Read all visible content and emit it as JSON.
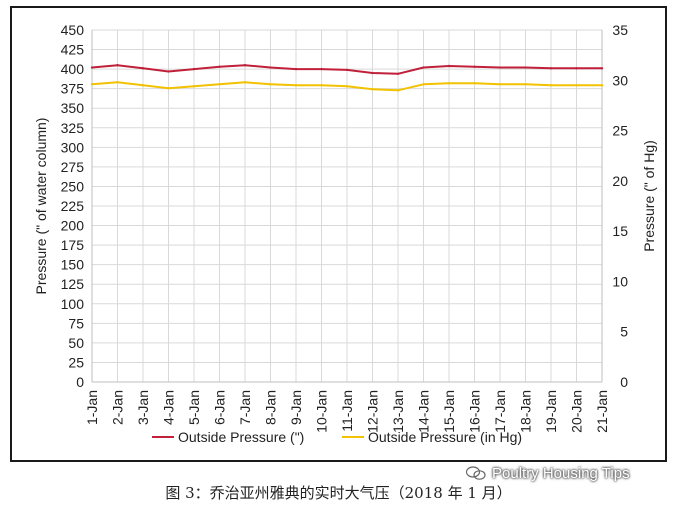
{
  "chart_data": {
    "type": "line",
    "x": [
      "1-Jan",
      "2-Jan",
      "3-Jan",
      "4-Jan",
      "5-Jan",
      "6-Jan",
      "7-Jan",
      "8-Jan",
      "9-Jan",
      "10-Jan",
      "11-Jan",
      "12-Jan",
      "13-Jan",
      "14-Jan",
      "15-Jan",
      "16-Jan",
      "17-Jan",
      "18-Jan",
      "19-Jan",
      "20-Jan",
      "21-Jan"
    ],
    "series": [
      {
        "name": "Outside Pressure (\")",
        "axis": "left",
        "color": "#c0203a",
        "values": [
          402,
          405,
          401,
          397,
          400,
          403,
          405,
          402,
          400,
          400,
          399,
          395,
          394,
          402,
          404,
          403,
          402,
          402,
          401,
          401,
          401
        ]
      },
      {
        "name": "Outside Pressure (in Hg)",
        "axis": "right",
        "color": "#f2c200",
        "values": [
          29.6,
          29.8,
          29.5,
          29.2,
          29.4,
          29.6,
          29.8,
          29.6,
          29.5,
          29.5,
          29.4,
          29.1,
          29.0,
          29.6,
          29.7,
          29.7,
          29.6,
          29.6,
          29.5,
          29.5,
          29.5
        ]
      }
    ],
    "ylabel": "Pressure (\" of water column)",
    "y2label": "Pressure (\" of Hg)",
    "ylim": [
      0,
      450
    ],
    "yticks": [
      0,
      25,
      50,
      75,
      100,
      125,
      150,
      175,
      200,
      225,
      250,
      275,
      300,
      325,
      350,
      375,
      400,
      425,
      450
    ],
    "y2lim": [
      0,
      35
    ],
    "y2ticks": [
      0,
      5,
      10,
      15,
      20,
      25,
      30,
      35
    ],
    "grid": true,
    "legend_position": "bottom"
  },
  "caption": "图 3：乔治亚州雅典的实时大气压（2018 年 1 月）",
  "watermark": {
    "icon": "wechat-icon",
    "text": "Poultry Housing Tips"
  }
}
